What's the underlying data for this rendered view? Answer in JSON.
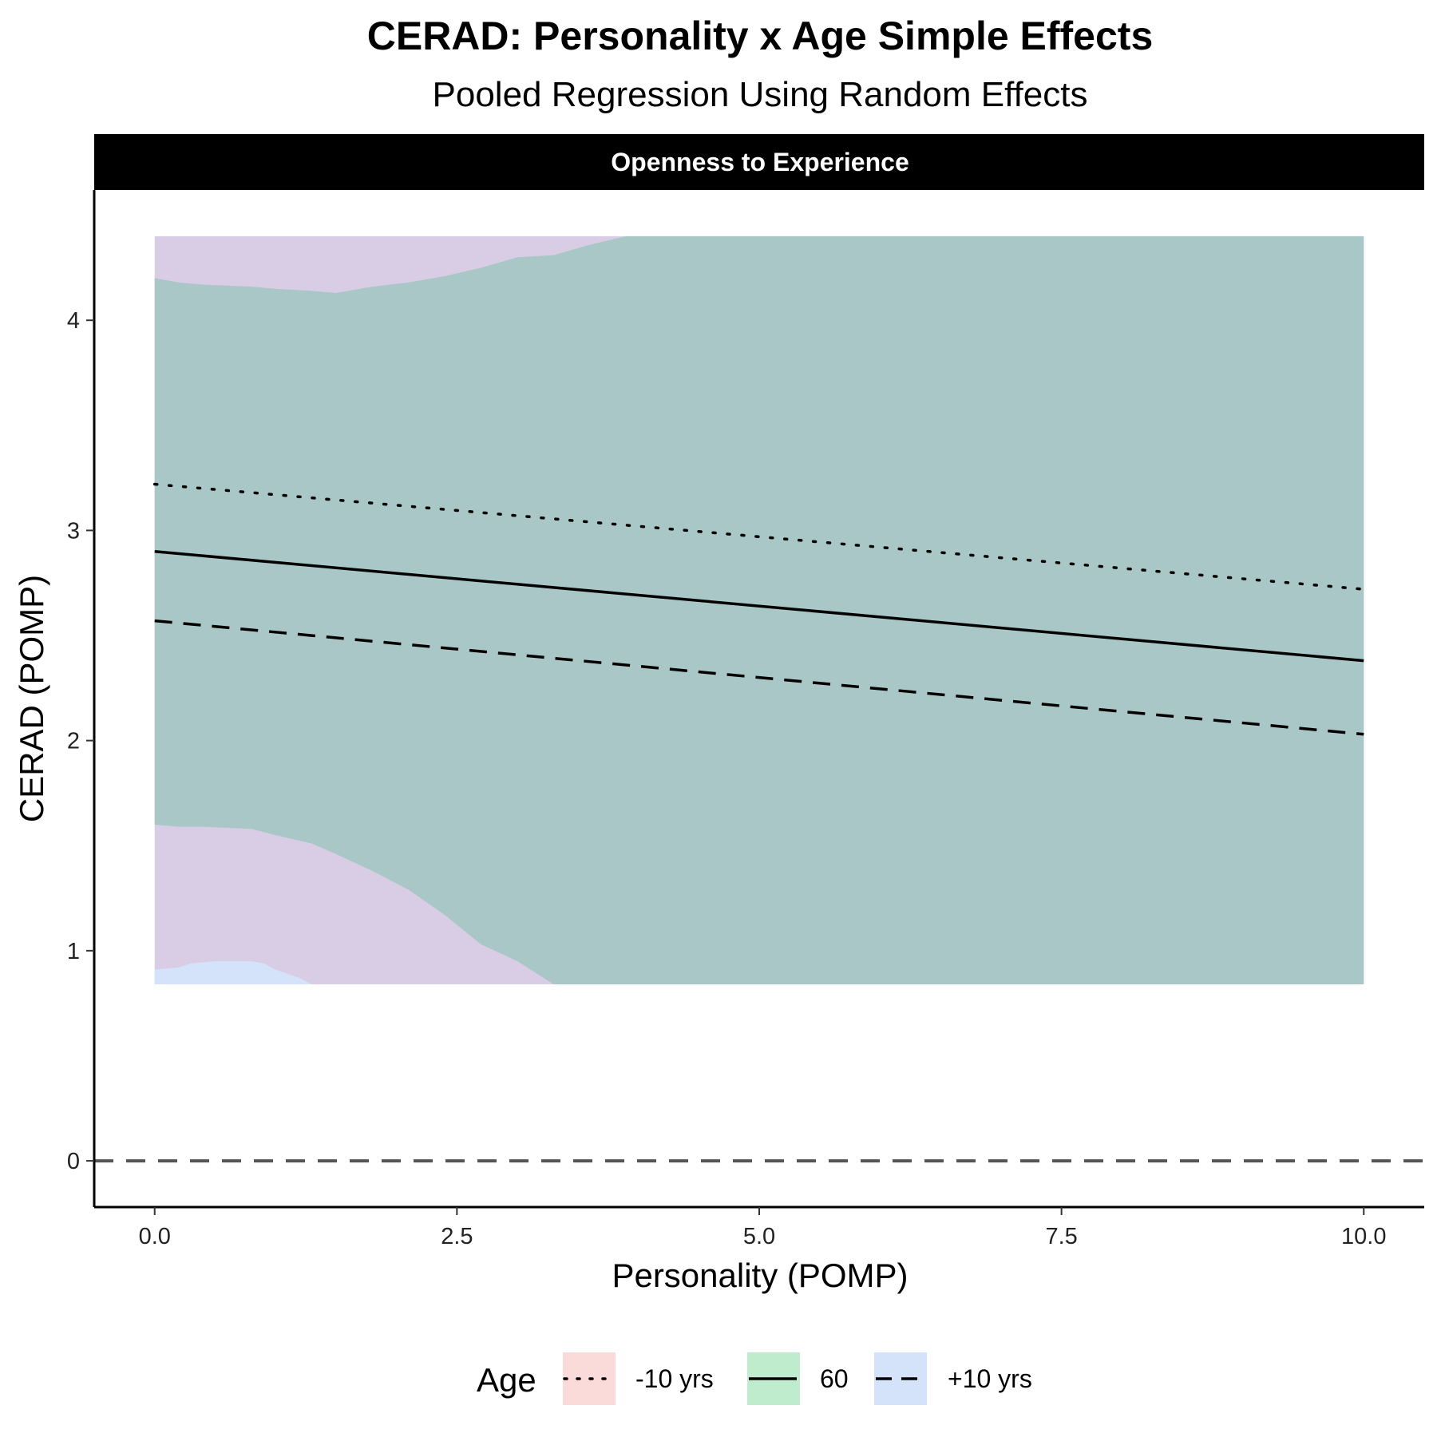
{
  "chart_data": {
    "type": "line",
    "title": "CERAD: Personality x Age Simple Effects",
    "subtitle": "Pooled Regression Using Random Effects",
    "facet": "Openness to Experience",
    "xlabel": "Personality (POMP)",
    "ylabel": "CERAD (POMP)",
    "xlim": [
      -0.5,
      10.5
    ],
    "ylim": [
      -0.22,
      4.62
    ],
    "x_ticks": [
      0,
      2.5,
      5,
      7.5,
      10
    ],
    "x_tick_labels": [
      "0.0",
      "2.5",
      "5.0",
      "7.5",
      "10.0"
    ],
    "y_ticks": [
      0,
      1,
      2,
      3,
      4
    ],
    "y_tick_labels": [
      "0",
      "1",
      "2",
      "3",
      "4"
    ],
    "reference_line": {
      "y": 0,
      "style": "dashed",
      "color": "#555555"
    },
    "ribbon_bounds": {
      "lower": 0.84,
      "upper": 4.4
    },
    "series": [
      {
        "name": "-10 yrs",
        "linetype": "dotted",
        "line_color": "#000000",
        "fill_color": "#f8766d",
        "x": [
          0,
          10
        ],
        "y": [
          3.22,
          2.72
        ],
        "ribbon": {
          "x": [
            0,
            10
          ],
          "lower": [
            0.84,
            0.84
          ],
          "upper": [
            4.4,
            4.4
          ]
        }
      },
      {
        "name": "60",
        "linetype": "solid",
        "line_color": "#000000",
        "fill_color": "#00ba38",
        "x": [
          0,
          10
        ],
        "y": [
          2.9,
          2.38
        ],
        "ribbon": {
          "x": [
            0,
            0.2,
            0.4,
            0.8,
            1.0,
            1.3,
            1.5,
            1.8,
            2.1,
            2.4,
            2.7,
            3.0,
            3.3,
            3.6,
            3.9,
            4.0,
            10
          ],
          "lower": [
            1.6,
            1.59,
            1.59,
            1.58,
            1.55,
            1.51,
            1.46,
            1.38,
            1.29,
            1.17,
            1.03,
            0.95,
            0.84,
            0.84,
            0.84,
            0.84,
            0.84
          ],
          "upper": [
            4.2,
            4.18,
            4.17,
            4.16,
            4.15,
            4.14,
            4.13,
            4.16,
            4.18,
            4.21,
            4.25,
            4.3,
            4.31,
            4.36,
            4.4,
            4.4,
            4.4
          ]
        }
      },
      {
        "name": "+10 yrs",
        "linetype": "dashed",
        "line_color": "#000000",
        "fill_color": "#619cff",
        "x": [
          0,
          10
        ],
        "y": [
          2.57,
          2.03
        ],
        "ribbon": {
          "x": [
            0,
            0.2,
            0.3,
            0.5,
            0.8,
            0.9,
            1.0,
            1.2,
            1.3,
            10
          ],
          "lower": [
            0.84,
            0.84,
            0.84,
            0.84,
            0.84,
            0.84,
            0.84,
            0.84,
            0.84,
            0.84
          ],
          "upper": [
            0.91,
            0.92,
            0.94,
            0.95,
            0.95,
            0.94,
            0.91,
            0.87,
            0.84,
            4.4
          ]
        }
      }
    ],
    "legend": {
      "title": "Age",
      "position": "bottom",
      "items": [
        "-10 yrs",
        "60",
        "+10 yrs"
      ]
    },
    "blend_colors": {
      "overlap_all": "#a8c7c6",
      "overlap_minus10_plus10": "#d8cde4"
    }
  }
}
